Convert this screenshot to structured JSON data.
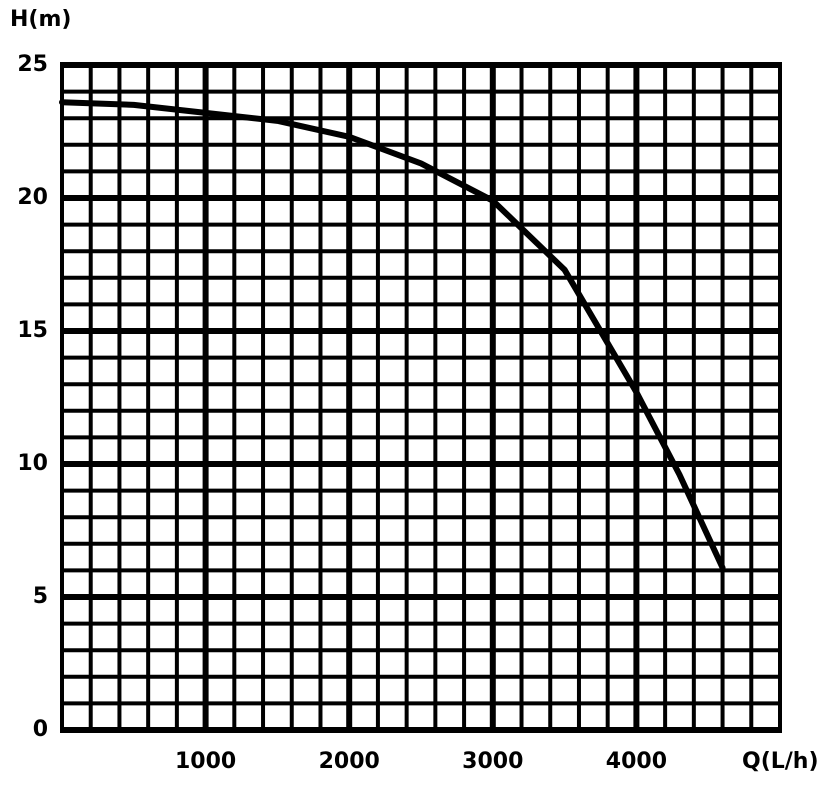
{
  "chart_data": {
    "type": "line",
    "y_label": "H(m)",
    "x_label": "Q(L/h)",
    "xlim": [
      0,
      5000
    ],
    "ylim": [
      0,
      25
    ],
    "xticks": [
      1000,
      2000,
      3000,
      4000
    ],
    "yticks": [
      0,
      5,
      10,
      15,
      20,
      25
    ],
    "x_minor_grid": [
      0,
      200,
      400,
      600,
      800,
      1000,
      1200,
      1400,
      1600,
      1800,
      2000,
      2200,
      2400,
      2600,
      2800,
      3000,
      3200,
      3400,
      3600,
      3800,
      4000,
      4200,
      4400,
      4600,
      4800,
      5000
    ],
    "y_minor_grid": [
      0,
      1,
      2,
      3,
      4,
      5,
      6,
      7,
      8,
      9,
      10,
      11,
      12,
      13,
      14,
      15,
      16,
      17,
      18,
      19,
      20,
      21,
      22,
      23,
      24,
      25
    ],
    "grid": true,
    "series": [
      {
        "color": "#000000",
        "x": [
          0,
          500,
          1000,
          1500,
          2000,
          2500,
          3000,
          3500,
          4000,
          4300,
          4600
        ],
        "values": [
          23.6,
          23.5,
          23.2,
          22.9,
          22.3,
          21.3,
          19.9,
          17.3,
          12.7,
          9.6,
          6.1
        ]
      }
    ]
  }
}
